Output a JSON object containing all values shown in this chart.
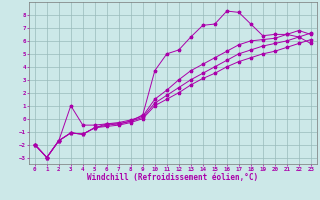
{
  "xlabel": "Windchill (Refroidissement éolien,°C)",
  "bg_color": "#cce8e8",
  "line_color": "#aa00aa",
  "grid_color": "#99bbbb",
  "xlim": [
    -0.5,
    23.5
  ],
  "ylim": [
    -3.5,
    9.0
  ],
  "xticks": [
    0,
    1,
    2,
    3,
    4,
    5,
    6,
    7,
    8,
    9,
    10,
    11,
    12,
    13,
    14,
    15,
    16,
    17,
    18,
    19,
    20,
    21,
    22,
    23
  ],
  "yticks": [
    -3,
    -2,
    -1,
    0,
    1,
    2,
    3,
    4,
    5,
    6,
    7,
    8
  ],
  "series1_x": [
    0,
    1,
    2,
    3,
    4,
    5,
    6,
    7,
    8,
    9,
    10,
    11,
    12,
    13,
    14,
    15,
    16,
    17,
    18,
    19,
    20,
    21,
    22,
    23
  ],
  "series1_y": [
    -2.0,
    -3.0,
    -1.7,
    1.0,
    -0.5,
    -0.5,
    -0.4,
    -0.4,
    -0.2,
    0.3,
    3.7,
    5.0,
    5.3,
    6.3,
    7.2,
    7.3,
    8.3,
    8.2,
    7.3,
    6.4,
    6.5,
    6.5,
    6.3,
    5.8
  ],
  "series2_x": [
    0,
    1,
    2,
    3,
    4,
    5,
    6,
    7,
    8,
    9,
    10,
    11,
    12,
    13,
    14,
    15,
    16,
    17,
    18,
    19,
    20,
    21,
    22,
    23
  ],
  "series2_y": [
    -2.0,
    -3.0,
    -1.7,
    -1.1,
    -1.2,
    -0.7,
    -0.6,
    -0.5,
    -0.3,
    0.0,
    1.0,
    1.5,
    2.0,
    2.6,
    3.1,
    3.5,
    4.0,
    4.4,
    4.7,
    5.0,
    5.2,
    5.5,
    5.8,
    6.1
  ],
  "series3_x": [
    0,
    1,
    2,
    3,
    4,
    5,
    6,
    7,
    8,
    9,
    10,
    11,
    12,
    13,
    14,
    15,
    16,
    17,
    18,
    19,
    20,
    21,
    22,
    23
  ],
  "series3_y": [
    -2.0,
    -3.0,
    -1.7,
    -1.1,
    -1.2,
    -0.7,
    -0.5,
    -0.4,
    -0.2,
    0.1,
    1.2,
    1.8,
    2.4,
    3.0,
    3.5,
    4.0,
    4.5,
    5.0,
    5.3,
    5.6,
    5.8,
    6.0,
    6.3,
    6.6
  ],
  "series4_x": [
    0,
    1,
    2,
    3,
    4,
    5,
    6,
    7,
    8,
    9,
    10,
    11,
    12,
    13,
    14,
    15,
    16,
    17,
    18,
    19,
    20,
    21,
    22,
    23
  ],
  "series4_y": [
    -2.0,
    -3.0,
    -1.7,
    -1.1,
    -1.2,
    -0.7,
    -0.4,
    -0.3,
    -0.1,
    0.2,
    1.5,
    2.2,
    3.0,
    3.7,
    4.2,
    4.7,
    5.2,
    5.7,
    6.0,
    6.1,
    6.2,
    6.5,
    6.8,
    6.5
  ]
}
